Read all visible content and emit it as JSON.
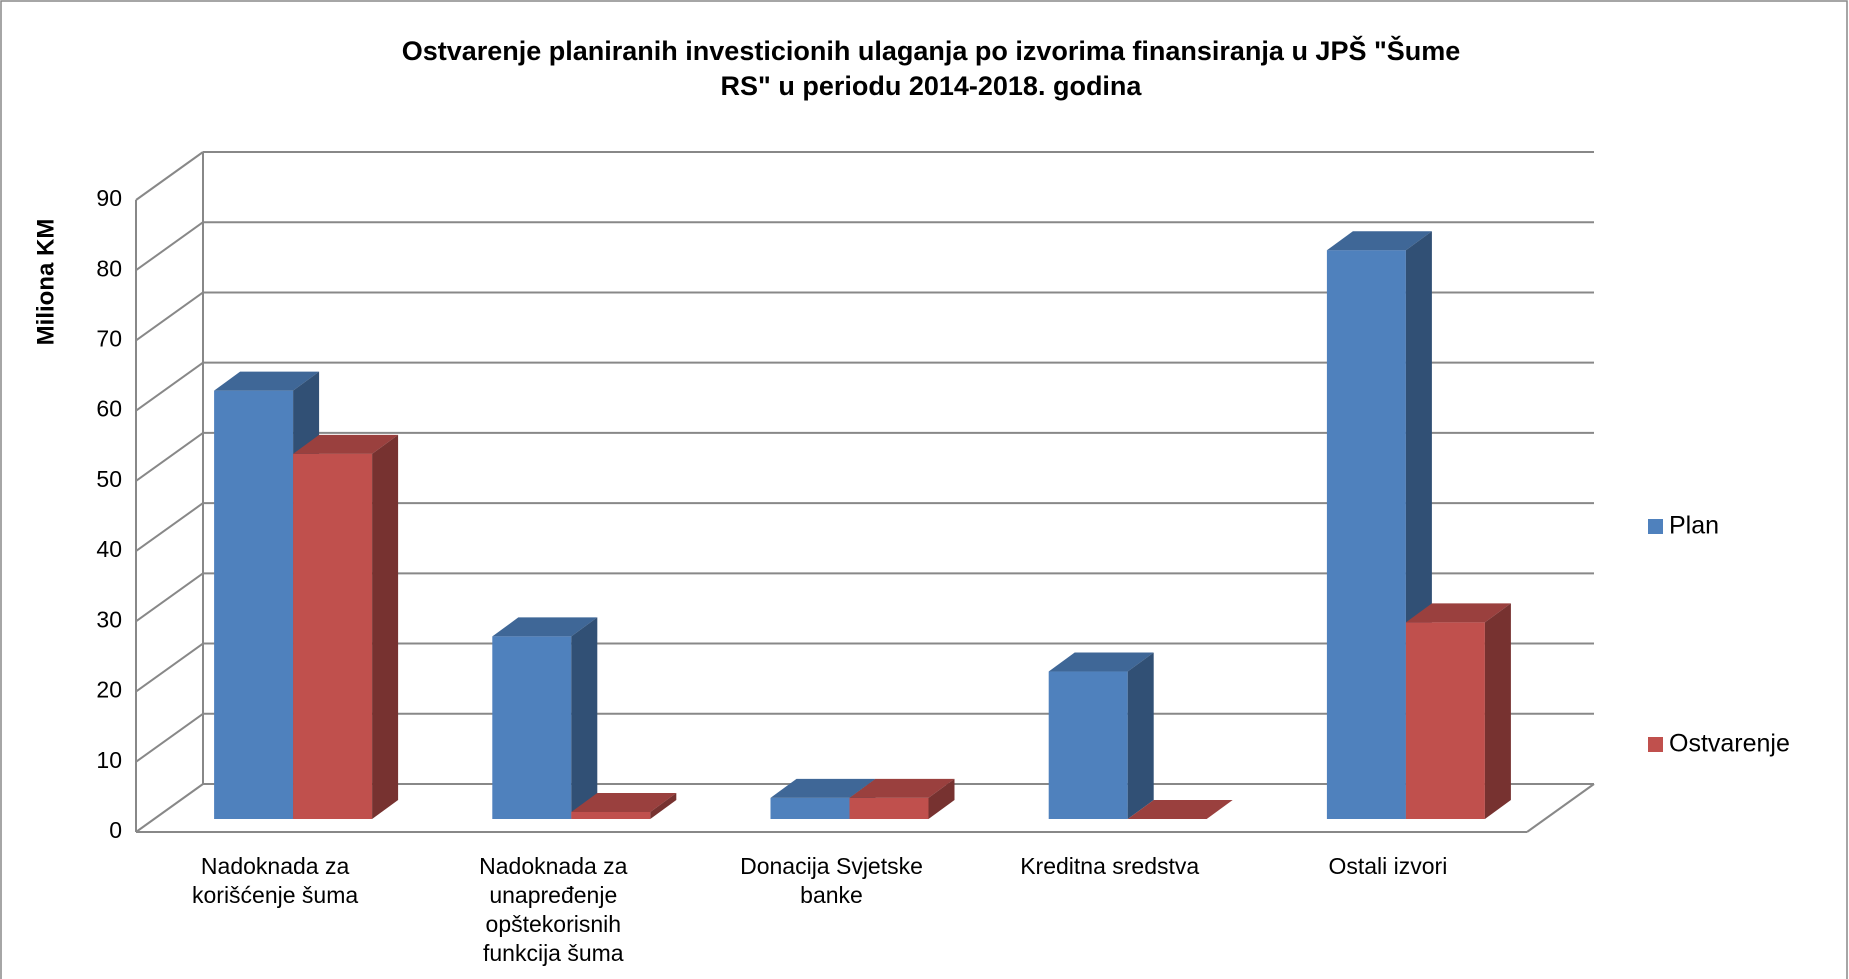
{
  "chart_data": {
    "type": "bar3d",
    "title": "Ostvarenje planiranih investicionih ulaganja po izvorima finansiranja u JPŠ \"Šume RS\" u periodu 2014-2018. godina",
    "y_label": "Miliona KM",
    "categories": [
      "Nadoknada za korišćenje šuma",
      "Nadoknada za unapređenje opštekorisnih funkcija šuma",
      "Donacija Svjetske banke",
      "Kreditna sredstva",
      "Ostali izvori"
    ],
    "series": [
      {
        "name": "Plan",
        "color": "#4f81bd",
        "values": [
          61,
          26,
          3,
          21,
          81
        ]
      },
      {
        "name": "Ostvarenje",
        "color": "#c0504d",
        "values": [
          52,
          1,
          3,
          0,
          28
        ]
      }
    ],
    "ylim": [
      0,
      90
    ],
    "yticks": [
      0,
      10,
      20,
      30,
      40,
      50,
      60,
      70,
      80,
      90
    ],
    "grid": true,
    "legend": "right"
  }
}
